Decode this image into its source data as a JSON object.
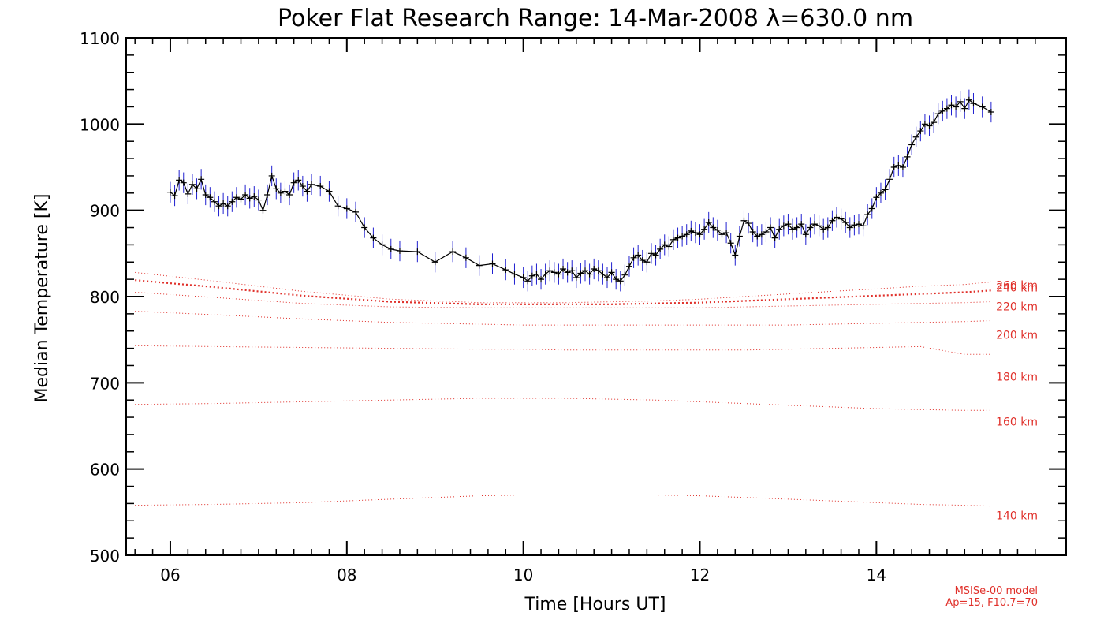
{
  "chart_data": {
    "type": "line",
    "title": "Poker Flat Research Range: 14-Mar-2008 λ=630.0 nm",
    "xlabel": "Time [Hours UT]",
    "ylabel": "Median Temperature [K]",
    "xlim": [
      5.5,
      16.15
    ],
    "ylim": [
      500,
      1100
    ],
    "xticks": [
      6,
      8,
      10,
      12,
      14
    ],
    "xtick_labels": [
      "06",
      "08",
      "10",
      "12",
      "14"
    ],
    "yticks": [
      500,
      600,
      700,
      800,
      900,
      1000,
      1100
    ],
    "ytick_labels": [
      "500",
      "600",
      "700",
      "800",
      "900",
      "1000",
      "1100"
    ],
    "grid": false,
    "series": [
      {
        "name": "",
        "color": "#000000",
        "error_color": "#2020d0",
        "error": 12,
        "x": [
          6.0,
          6.05,
          6.1,
          6.15,
          6.2,
          6.25,
          6.3,
          6.35,
          6.4,
          6.45,
          6.5,
          6.55,
          6.6,
          6.65,
          6.7,
          6.75,
          6.8,
          6.85,
          6.9,
          6.95,
          7.0,
          7.05,
          7.1,
          7.15,
          7.2,
          7.25,
          7.3,
          7.35,
          7.4,
          7.45,
          7.5,
          7.55,
          7.6,
          7.7,
          7.8,
          7.9,
          8.0,
          8.1,
          8.2,
          8.3,
          8.4,
          8.5,
          8.6,
          8.8,
          9.0,
          9.2,
          9.35,
          9.5,
          9.65,
          9.8,
          9.9,
          10.0,
          10.05,
          10.1,
          10.15,
          10.2,
          10.25,
          10.3,
          10.35,
          10.4,
          10.45,
          10.5,
          10.55,
          10.6,
          10.65,
          10.7,
          10.75,
          10.8,
          10.85,
          10.9,
          10.95,
          11.0,
          11.05,
          11.1,
          11.15,
          11.2,
          11.25,
          11.3,
          11.35,
          11.4,
          11.45,
          11.5,
          11.55,
          11.6,
          11.65,
          11.7,
          11.75,
          11.8,
          11.85,
          11.9,
          11.95,
          12.0,
          12.05,
          12.1,
          12.15,
          12.2,
          12.25,
          12.3,
          12.35,
          12.4,
          12.45,
          12.5,
          12.55,
          12.6,
          12.65,
          12.7,
          12.75,
          12.8,
          12.85,
          12.9,
          12.95,
          13.0,
          13.05,
          13.1,
          13.15,
          13.2,
          13.25,
          13.3,
          13.35,
          13.4,
          13.45,
          13.5,
          13.55,
          13.6,
          13.65,
          13.7,
          13.75,
          13.8,
          13.85,
          13.9,
          13.95,
          14.0,
          14.05,
          14.1,
          14.15,
          14.2,
          14.25,
          14.3,
          14.35,
          14.4,
          14.45,
          14.5,
          14.55,
          14.6,
          14.65,
          14.7,
          14.75,
          14.8,
          14.85,
          14.9,
          14.95,
          15.0,
          15.05,
          15.1,
          15.2,
          15.3
        ],
        "y": [
          921,
          917,
          935,
          932,
          919,
          930,
          925,
          936,
          918,
          915,
          910,
          905,
          908,
          905,
          910,
          915,
          913,
          918,
          914,
          916,
          912,
          900,
          918,
          940,
          925,
          920,
          922,
          918,
          932,
          935,
          928,
          922,
          930,
          928,
          922,
          905,
          902,
          898,
          880,
          868,
          860,
          855,
          853,
          852,
          840,
          852,
          845,
          836,
          838,
          831,
          826,
          822,
          818,
          824,
          826,
          820,
          826,
          830,
          828,
          826,
          832,
          828,
          830,
          822,
          827,
          830,
          826,
          832,
          830,
          826,
          822,
          828,
          820,
          818,
          825,
          835,
          845,
          848,
          842,
          840,
          850,
          848,
          855,
          860,
          858,
          866,
          868,
          870,
          872,
          876,
          874,
          872,
          878,
          886,
          880,
          877,
          872,
          874,
          862,
          848,
          870,
          888,
          885,
          875,
          870,
          872,
          875,
          880,
          868,
          878,
          882,
          884,
          878,
          880,
          884,
          872,
          880,
          884,
          882,
          878,
          880,
          888,
          892,
          890,
          886,
          880,
          883,
          884,
          882,
          895,
          902,
          915,
          920,
          924,
          936,
          950,
          952,
          950,
          962,
          976,
          985,
          992,
          1000,
          998,
          1002,
          1012,
          1015,
          1018,
          1022,
          1020,
          1026,
          1018,
          1028,
          1024,
          1020,
          1014
        ]
      },
      {
        "name": "140 km",
        "color": "#e0302a",
        "x": [
          5.6,
          6.5,
          7.5,
          8.5,
          9.5,
          10.0,
          10.5,
          11.0,
          11.5,
          12.0,
          12.5,
          13.0,
          13.5,
          14.0,
          14.5,
          15.0,
          15.3
        ],
        "y": [
          558,
          559,
          561,
          565,
          569,
          570,
          570,
          570,
          570,
          569,
          567,
          565,
          563,
          561,
          559,
          558,
          557
        ]
      },
      {
        "name": "160 km",
        "color": "#e0302a",
        "x": [
          5.6,
          6.5,
          7.5,
          8.5,
          9.5,
          10.0,
          10.5,
          11.0,
          11.5,
          12.0,
          12.5,
          13.0,
          13.5,
          14.0,
          14.5,
          15.0,
          15.3
        ],
        "y": [
          675,
          676,
          678,
          680,
          682,
          682,
          682,
          681,
          680,
          678,
          676,
          674,
          672,
          670,
          669,
          668,
          668
        ]
      },
      {
        "name": "180 km",
        "color": "#e0302a",
        "x": [
          5.6,
          6.5,
          7.5,
          8.5,
          9.5,
          10.0,
          10.5,
          11.0,
          11.5,
          12.0,
          12.5,
          13.0,
          13.5,
          14.0,
          14.5,
          15.0,
          15.3
        ],
        "y": [
          743,
          742,
          741,
          740,
          739,
          739,
          738,
          738,
          738,
          738,
          738,
          739,
          740,
          741,
          742,
          733,
          733
        ]
      },
      {
        "name": "200 km",
        "color": "#e0302a",
        "x": [
          5.6,
          6.5,
          7.5,
          8.5,
          9.5,
          10.0,
          10.5,
          11.0,
          11.5,
          12.0,
          12.5,
          13.0,
          13.5,
          14.0,
          14.5,
          15.0,
          15.3
        ],
        "y": [
          783,
          779,
          774,
          770,
          768,
          767,
          767,
          767,
          767,
          767,
          767,
          767,
          768,
          769,
          770,
          771,
          772
        ]
      },
      {
        "name": "220 km",
        "color": "#e0302a",
        "x": [
          5.6,
          6.5,
          7.5,
          8.5,
          9.5,
          10.0,
          10.5,
          11.0,
          11.5,
          12.0,
          12.5,
          13.0,
          13.5,
          14.0,
          14.5,
          15.0,
          15.3
        ],
        "y": [
          805,
          799,
          792,
          788,
          787,
          787,
          787,
          787,
          787,
          787,
          788,
          789,
          790,
          791,
          792,
          793,
          794
        ]
      },
      {
        "name": "240 km",
        "color": "#e0302a",
        "x": [
          5.6,
          6.5,
          7.5,
          8.5,
          9.5,
          10.0,
          10.5,
          11.0,
          11.5,
          12.0,
          12.5,
          13.0,
          13.5,
          14.0,
          14.5,
          15.0,
          15.3
        ],
        "y": [
          819,
          811,
          801,
          794,
          791,
          791,
          791,
          791,
          792,
          793,
          795,
          797,
          799,
          801,
          803,
          805,
          807
        ]
      },
      {
        "name": "260 km",
        "color": "#e0302a",
        "x": [
          5.6,
          6.5,
          7.5,
          8.5,
          9.5,
          10.0,
          10.5,
          11.0,
          11.5,
          12.0,
          12.5,
          13.0,
          13.5,
          14.0,
          14.5,
          15.0,
          15.3
        ],
        "y": [
          828,
          818,
          806,
          797,
          793,
          793,
          793,
          794,
          795,
          797,
          800,
          803,
          806,
          809,
          812,
          814,
          817
        ]
      }
    ],
    "model_labels": [
      "260 km",
      "240 km",
      "220 km",
      "200 km",
      "180 km",
      "160 km",
      "140 km"
    ],
    "notes": [
      "MSISe-00 model",
      "Ap=15, F10.7=70"
    ]
  }
}
